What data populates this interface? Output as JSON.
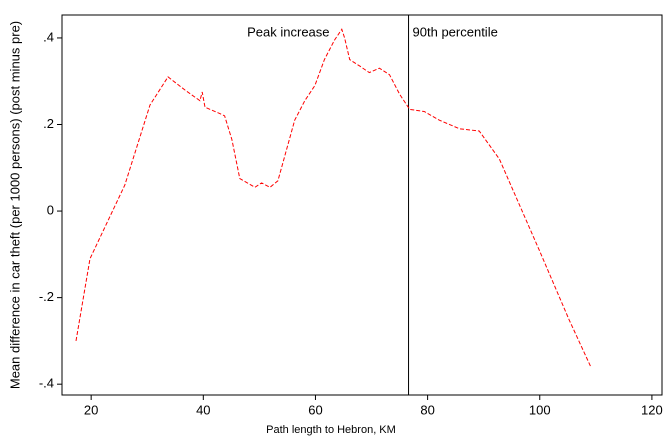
{
  "chart_data": {
    "type": "line",
    "xlabel": "Path length to Hebron, KM",
    "ylabel": "Mean difference in car theft (per 1000 persons) (post minus pre)",
    "annotations": [
      "Peak increase",
      "90th percentile"
    ],
    "vline": 76.6,
    "xlim": [
      14.8,
      121.8
    ],
    "ylim": [
      -0.425,
      0.453
    ],
    "xticks": [
      20,
      40,
      60,
      80,
      100,
      120
    ],
    "yticks": [
      {
        "value": 0.4,
        "label": ".4"
      },
      {
        "value": 0.2,
        "label": ".2"
      },
      0,
      {
        "value": -0.2,
        "label": "-.2"
      },
      {
        "value": -0.4,
        "label": "-.4"
      }
    ],
    "series": [
      {
        "color": "#ff0000",
        "x": [
          17.3,
          19.8,
          26.0,
          30.5,
          33.7,
          36.7,
          39.4,
          39.8,
          40.3,
          43.0,
          43.8,
          45.1,
          46.5,
          49.2,
          50.4,
          51.9,
          53.3,
          56.3,
          58.1,
          59.9,
          61.6,
          63.4,
          64.7,
          65.2,
          66.1,
          67.9,
          69.6,
          71.4,
          73.2,
          75.0,
          76.8,
          79.4,
          82.1,
          85.7,
          89.2,
          92.8,
          99.9,
          105.2,
          109.1
        ],
        "values": [
          -0.3,
          -0.11,
          0.06,
          0.245,
          0.31,
          0.28,
          0.255,
          0.275,
          0.24,
          0.225,
          0.22,
          0.165,
          0.075,
          0.055,
          0.065,
          0.055,
          0.07,
          0.21,
          0.255,
          0.29,
          0.35,
          0.395,
          0.42,
          0.4,
          0.35,
          0.335,
          0.32,
          0.33,
          0.315,
          0.27,
          0.235,
          0.23,
          0.21,
          0.19,
          0.185,
          0.12,
          -0.09,
          -0.25,
          -0.36
        ]
      }
    ]
  }
}
